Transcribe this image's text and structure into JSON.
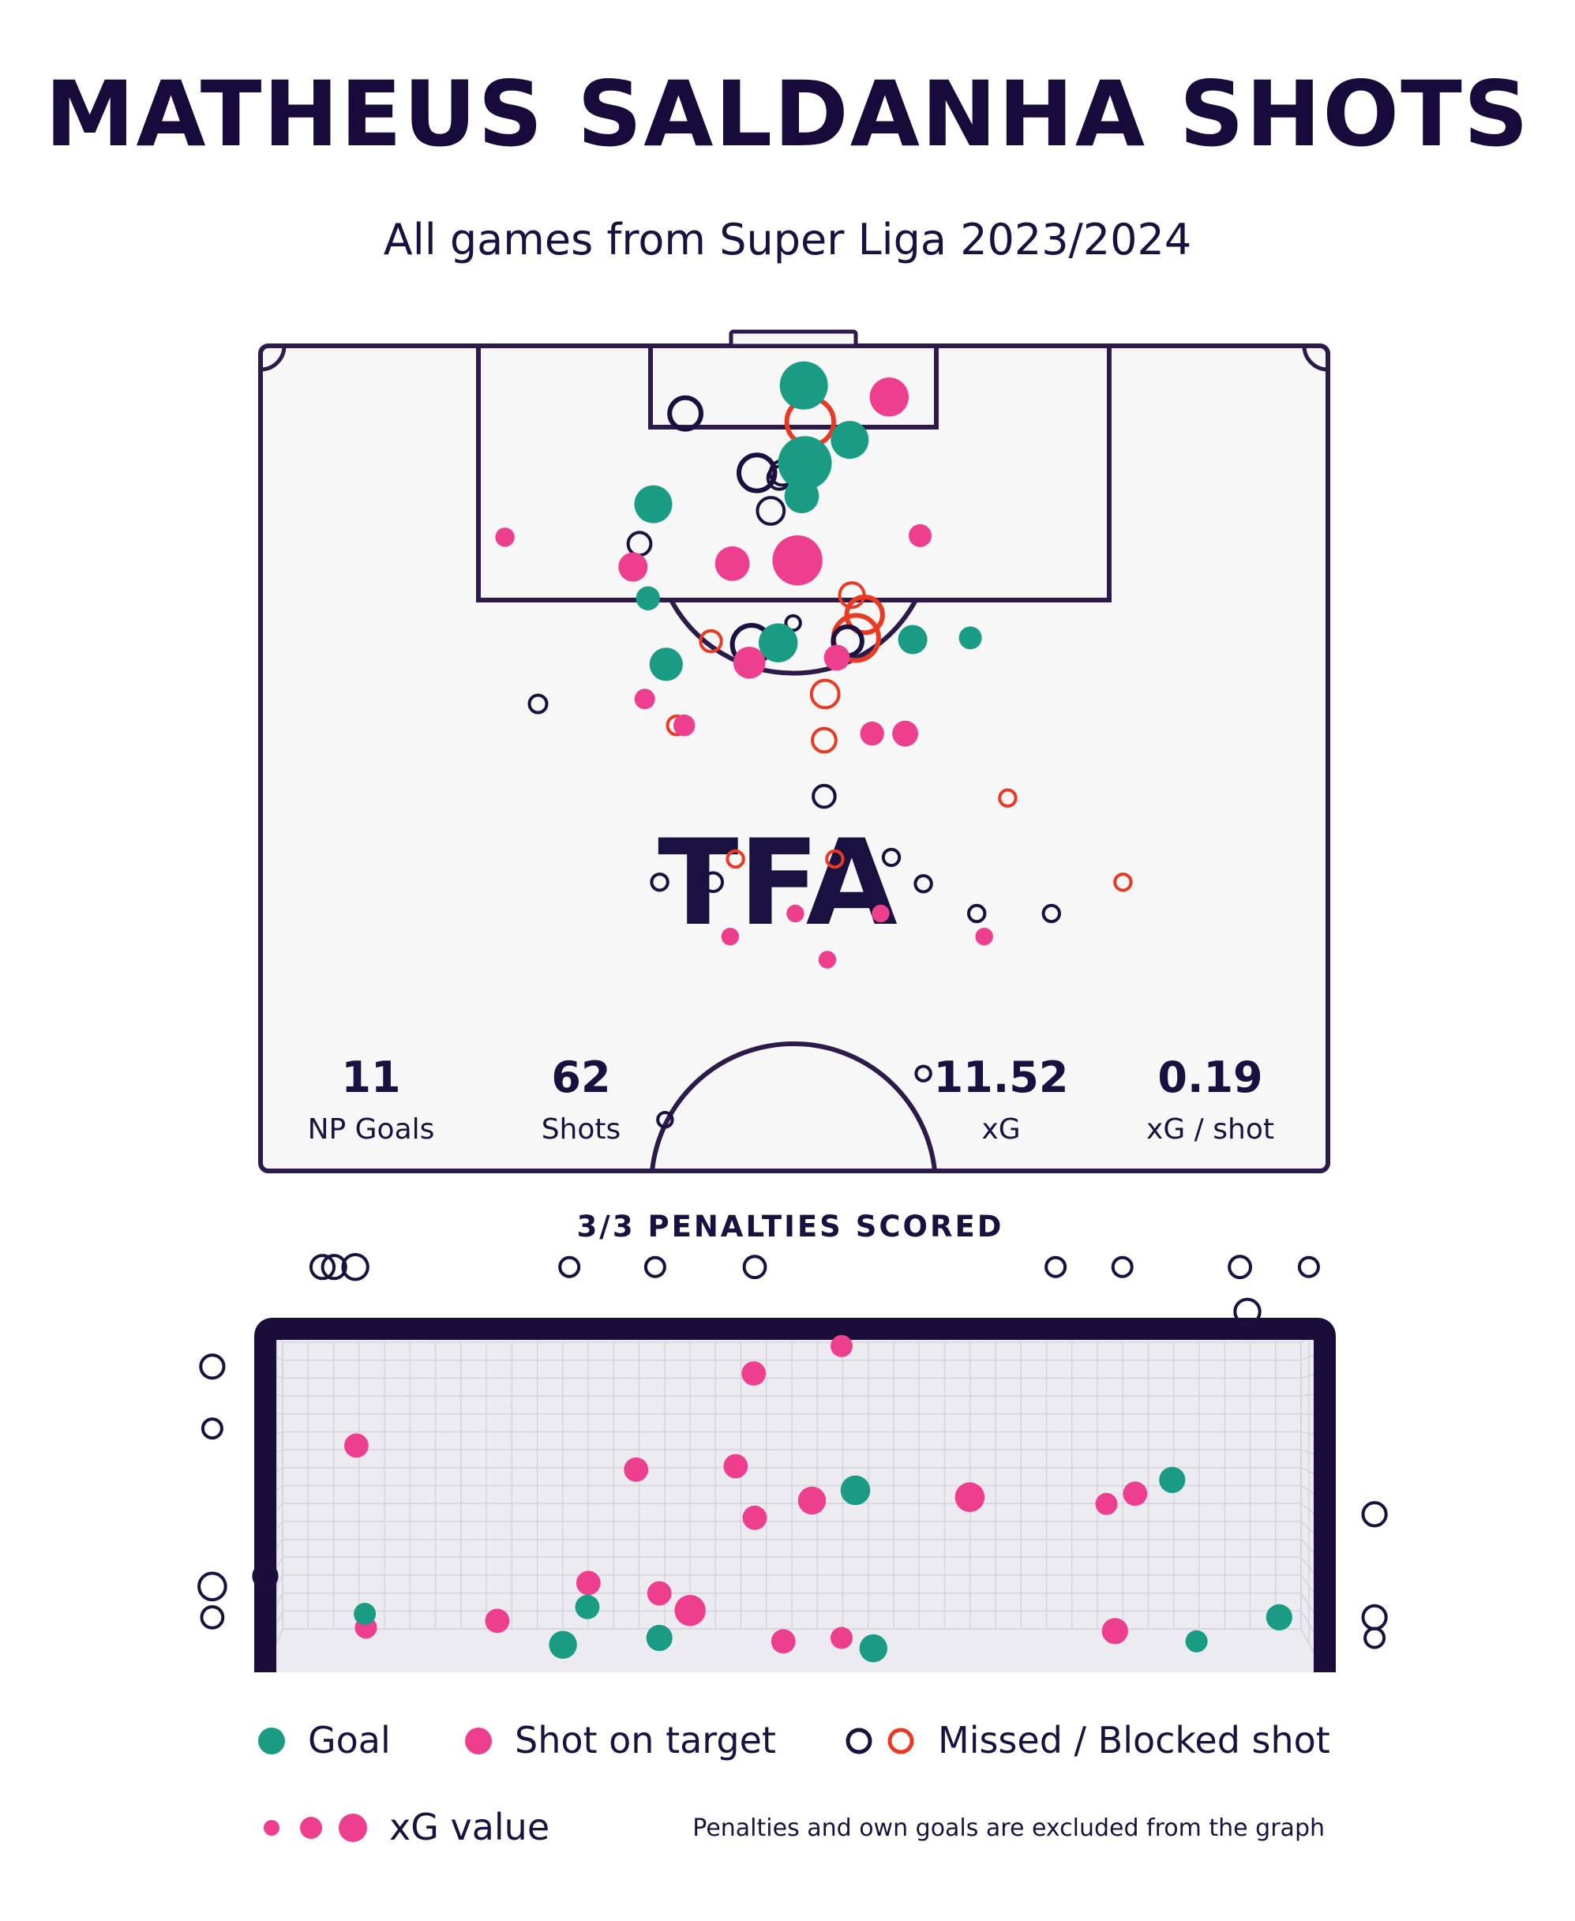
{
  "title": "MATHEUS SALDANHA SHOTS",
  "subtitle": "All games from Super Liga 2023/2024",
  "logo": "TFA",
  "colors": {
    "goal": "#1a9b83",
    "on_target": "#ee3f8f",
    "missed": "#1b1140",
    "blocked": "#ea3a24",
    "pitch_bg": "#f7f7f7",
    "line": "#2b1a4a"
  },
  "stats": [
    {
      "value": "11",
      "label": "NP Goals"
    },
    {
      "value": "62",
      "label": "Shots"
    },
    {
      "value": "11.52",
      "label": "xG"
    },
    {
      "value": "0.19",
      "label": "xG / shot"
    }
  ],
  "penalties_label": "3/3 PENALTIES SCORED",
  "legend": {
    "goal": "Goal",
    "on_target": "Shot on target",
    "missed": "Missed / Blocked shot",
    "xg": "xG value",
    "note": "Penalties and own goals are excluded from the graph"
  },
  "chart_data": [
    {
      "type": "scatter",
      "shots": [
        {
          "x": 50.9,
          "y": 97.6,
          "xg": 0.5,
          "outcome": "goal"
        },
        {
          "x": 58.9,
          "y": 96.9,
          "xg": 0.3,
          "outcome": "on_target"
        },
        {
          "x": 51.5,
          "y": 95.4,
          "xg": 0.55,
          "outcome": "blocked"
        },
        {
          "x": 55.2,
          "y": 94.3,
          "xg": 0.28,
          "outcome": "goal"
        },
        {
          "x": 51.0,
          "y": 92.9,
          "xg": 0.8,
          "outcome": "goal"
        },
        {
          "x": 50.7,
          "y": 90.9,
          "xg": 0.22,
          "outcome": "goal"
        },
        {
          "x": 39.8,
          "y": 95.9,
          "xg": 0.22,
          "outcome": "missed"
        },
        {
          "x": 46.5,
          "y": 92.3,
          "xg": 0.3,
          "outcome": "missed"
        },
        {
          "x": 48.9,
          "y": 92.3,
          "xg": 0.12,
          "outcome": "missed"
        },
        {
          "x": 50.2,
          "y": 93.2,
          "xg": 0.1,
          "outcome": "missed"
        },
        {
          "x": 47.8,
          "y": 90.0,
          "xg": 0.15,
          "outcome": "missed"
        },
        {
          "x": 48.6,
          "y": 92.0,
          "xg": 0.1,
          "outcome": "missed"
        },
        {
          "x": 36.8,
          "y": 90.4,
          "xg": 0.28,
          "outcome": "goal"
        },
        {
          "x": 35.5,
          "y": 88.0,
          "xg": 0.1,
          "outcome": "missed"
        },
        {
          "x": 22.9,
          "y": 88.4,
          "xg": 0.04,
          "outcome": "on_target"
        },
        {
          "x": 34.9,
          "y": 86.6,
          "xg": 0.14,
          "outcome": "on_target"
        },
        {
          "x": 44.2,
          "y": 86.8,
          "xg": 0.22,
          "outcome": "on_target"
        },
        {
          "x": 50.3,
          "y": 87.0,
          "xg": 0.55,
          "outcome": "on_target"
        },
        {
          "x": 36.3,
          "y": 84.7,
          "xg": 0.08,
          "outcome": "goal"
        },
        {
          "x": 46.0,
          "y": 81.9,
          "xg": 0.35,
          "outcome": "missed"
        },
        {
          "x": 48.5,
          "y": 82.0,
          "xg": 0.3,
          "outcome": "goal"
        },
        {
          "x": 45.8,
          "y": 80.8,
          "xg": 0.18,
          "outcome": "on_target"
        },
        {
          "x": 49.9,
          "y": 83.2,
          "xg": 0.03,
          "outcome": "missed"
        },
        {
          "x": 42.2,
          "y": 82.1,
          "xg": 0.08,
          "outcome": "blocked"
        },
        {
          "x": 38.0,
          "y": 80.7,
          "xg": 0.2,
          "outcome": "goal"
        },
        {
          "x": 55.4,
          "y": 84.9,
          "xg": 0.12,
          "outcome": "blocked"
        },
        {
          "x": 56.6,
          "y": 83.7,
          "xg": 0.3,
          "outcome": "blocked"
        },
        {
          "x": 55.8,
          "y": 82.3,
          "xg": 0.5,
          "outcome": "blocked"
        },
        {
          "x": 55.0,
          "y": 82.1,
          "xg": 0.18,
          "outcome": "missed"
        },
        {
          "x": 54.0,
          "y": 81.1,
          "xg": 0.1,
          "outcome": "on_target"
        },
        {
          "x": 52.9,
          "y": 78.9,
          "xg": 0.16,
          "outcome": "blocked"
        },
        {
          "x": 61.8,
          "y": 88.5,
          "xg": 0.07,
          "outcome": "on_target"
        },
        {
          "x": 61.1,
          "y": 82.2,
          "xg": 0.14,
          "outcome": "goal"
        },
        {
          "x": 66.5,
          "y": 82.3,
          "xg": 0.07,
          "outcome": "goal"
        },
        {
          "x": 26.0,
          "y": 78.3,
          "xg": 0.05,
          "outcome": "missed"
        },
        {
          "x": 36.0,
          "y": 78.6,
          "xg": 0.05,
          "outcome": "on_target"
        },
        {
          "x": 39.0,
          "y": 77.0,
          "xg": 0.06,
          "outcome": "blocked"
        },
        {
          "x": 39.7,
          "y": 77.0,
          "xg": 0.06,
          "outcome": "on_target"
        },
        {
          "x": 57.3,
          "y": 76.5,
          "xg": 0.08,
          "outcome": "on_target"
        },
        {
          "x": 60.4,
          "y": 76.5,
          "xg": 0.1,
          "outcome": "on_target"
        },
        {
          "x": 52.8,
          "y": 76.1,
          "xg": 0.11,
          "outcome": "blocked"
        },
        {
          "x": 52.8,
          "y": 72.7,
          "xg": 0.09,
          "outcome": "missed"
        },
        {
          "x": 70.0,
          "y": 72.6,
          "xg": 0.04,
          "outcome": "blocked"
        },
        {
          "x": 44.5,
          "y": 68.9,
          "xg": 0.04,
          "outcome": "blocked"
        },
        {
          "x": 53.8,
          "y": 68.9,
          "xg": 0.04,
          "outcome": "blocked"
        },
        {
          "x": 59.1,
          "y": 69.0,
          "xg": 0.04,
          "outcome": "missed"
        },
        {
          "x": 37.4,
          "y": 67.5,
          "xg": 0.04,
          "outcome": "missed"
        },
        {
          "x": 42.4,
          "y": 67.5,
          "xg": 0.06,
          "outcome": "missed"
        },
        {
          "x": 62.1,
          "y": 67.4,
          "xg": 0.04,
          "outcome": "missed"
        },
        {
          "x": 80.8,
          "y": 67.5,
          "xg": 0.04,
          "outcome": "blocked"
        },
        {
          "x": 50.1,
          "y": 65.6,
          "xg": 0.03,
          "outcome": "on_target"
        },
        {
          "x": 58.1,
          "y": 65.6,
          "xg": 0.03,
          "outcome": "on_target"
        },
        {
          "x": 67.1,
          "y": 65.6,
          "xg": 0.04,
          "outcome": "missed"
        },
        {
          "x": 74.1,
          "y": 65.6,
          "xg": 0.04,
          "outcome": "missed"
        },
        {
          "x": 44.0,
          "y": 64.2,
          "xg": 0.03,
          "outcome": "on_target"
        },
        {
          "x": 53.1,
          "y": 62.8,
          "xg": 0.03,
          "outcome": "on_target"
        },
        {
          "x": 67.8,
          "y": 64.2,
          "xg": 0.03,
          "outcome": "on_target"
        },
        {
          "x": 62.1,
          "y": 55.9,
          "xg": 0.03,
          "outcome": "missed"
        },
        {
          "x": 37.9,
          "y": 53.1,
          "xg": 0.03,
          "outcome": "missed"
        }
      ]
    },
    {
      "type": "scatter",
      "shots": [
        {
          "x": 5.4,
          "y": 118.0,
          "xg": 0.05,
          "outcome": "missed"
        },
        {
          "x": 6.5,
          "y": 118.0,
          "xg": 0.05,
          "outcome": "missed"
        },
        {
          "x": 8.5,
          "y": 118.0,
          "xg": 0.06,
          "outcome": "missed"
        },
        {
          "x": 28.7,
          "y": 118.0,
          "xg": 0.03,
          "outcome": "missed"
        },
        {
          "x": 36.8,
          "y": 118.0,
          "xg": 0.03,
          "outcome": "missed"
        },
        {
          "x": 46.2,
          "y": 118.0,
          "xg": 0.04,
          "outcome": "missed"
        },
        {
          "x": 74.6,
          "y": 118.0,
          "xg": 0.03,
          "outcome": "missed"
        },
        {
          "x": 80.9,
          "y": 118.0,
          "xg": 0.03,
          "outcome": "missed"
        },
        {
          "x": 92.0,
          "y": 118.0,
          "xg": 0.04,
          "outcome": "missed"
        },
        {
          "x": 98.5,
          "y": 118.0,
          "xg": 0.03,
          "outcome": "missed"
        },
        {
          "x": 92.7,
          "y": 105.0,
          "xg": 0.06,
          "outcome": "missed"
        },
        {
          "x": -5.0,
          "y": 89.0,
          "xg": 0.05,
          "outcome": "missed"
        },
        {
          "x": -5.0,
          "y": 71.0,
          "xg": 0.03,
          "outcome": "missed"
        },
        {
          "x": -5.0,
          "y": 25.0,
          "xg": 0.07,
          "outcome": "missed"
        },
        {
          "x": -5.0,
          "y": 16.0,
          "xg": 0.04,
          "outcome": "missed"
        },
        {
          "x": 0.0,
          "y": 28.0,
          "xg": 0.05,
          "outcome": "missed"
        },
        {
          "x": 104.7,
          "y": 46.0,
          "xg": 0.05,
          "outcome": "missed"
        },
        {
          "x": 104.7,
          "y": 16.0,
          "xg": 0.05,
          "outcome": "missed"
        },
        {
          "x": 104.7,
          "y": 10.0,
          "xg": 0.03,
          "outcome": "missed"
        },
        {
          "x": 46.1,
          "y": 87.0,
          "xg": 0.04,
          "outcome": "on_target"
        },
        {
          "x": 54.4,
          "y": 95.0,
          "xg": 0.03,
          "outcome": "on_target"
        },
        {
          "x": 8.6,
          "y": 66.0,
          "xg": 0.04,
          "outcome": "on_target"
        },
        {
          "x": 35.0,
          "y": 59.0,
          "xg": 0.04,
          "outcome": "on_target"
        },
        {
          "x": 44.4,
          "y": 60.0,
          "xg": 0.04,
          "outcome": "on_target"
        },
        {
          "x": 55.7,
          "y": 53.0,
          "xg": 0.07,
          "outcome": "goal"
        },
        {
          "x": 51.6,
          "y": 50.0,
          "xg": 0.06,
          "outcome": "on_target"
        },
        {
          "x": 46.2,
          "y": 45.0,
          "xg": 0.04,
          "outcome": "on_target"
        },
        {
          "x": 66.5,
          "y": 51.0,
          "xg": 0.07,
          "outcome": "on_target"
        },
        {
          "x": 79.4,
          "y": 49.0,
          "xg": 0.03,
          "outcome": "on_target"
        },
        {
          "x": 82.1,
          "y": 52.0,
          "xg": 0.04,
          "outcome": "on_target"
        },
        {
          "x": 85.6,
          "y": 56.0,
          "xg": 0.05,
          "outcome": "goal"
        },
        {
          "x": 30.5,
          "y": 26.0,
          "xg": 0.04,
          "outcome": "on_target"
        },
        {
          "x": 30.4,
          "y": 19.0,
          "xg": 0.04,
          "outcome": "goal"
        },
        {
          "x": 37.2,
          "y": 23.0,
          "xg": 0.04,
          "outcome": "on_target"
        },
        {
          "x": 40.1,
          "y": 18.0,
          "xg": 0.08,
          "outcome": "on_target"
        },
        {
          "x": 9.4,
          "y": 17.0,
          "xg": 0.03,
          "outcome": "goal"
        },
        {
          "x": 9.5,
          "y": 13.0,
          "xg": 0.03,
          "outcome": "on_target"
        },
        {
          "x": 21.9,
          "y": 15.0,
          "xg": 0.04,
          "outcome": "on_target"
        },
        {
          "x": 28.1,
          "y": 8.0,
          "xg": 0.06,
          "outcome": "goal"
        },
        {
          "x": 37.2,
          "y": 10.0,
          "xg": 0.05,
          "outcome": "goal"
        },
        {
          "x": 48.9,
          "y": 9.0,
          "xg": 0.04,
          "outcome": "on_target"
        },
        {
          "x": 54.4,
          "y": 10.0,
          "xg": 0.03,
          "outcome": "on_target"
        },
        {
          "x": 57.4,
          "y": 7.0,
          "xg": 0.06,
          "outcome": "goal"
        },
        {
          "x": 80.2,
          "y": 12.0,
          "xg": 0.05,
          "outcome": "on_target"
        },
        {
          "x": 87.9,
          "y": 9.0,
          "xg": 0.03,
          "outcome": "goal"
        },
        {
          "x": 95.7,
          "y": 16.0,
          "xg": 0.05,
          "outcome": "goal"
        }
      ]
    }
  ]
}
